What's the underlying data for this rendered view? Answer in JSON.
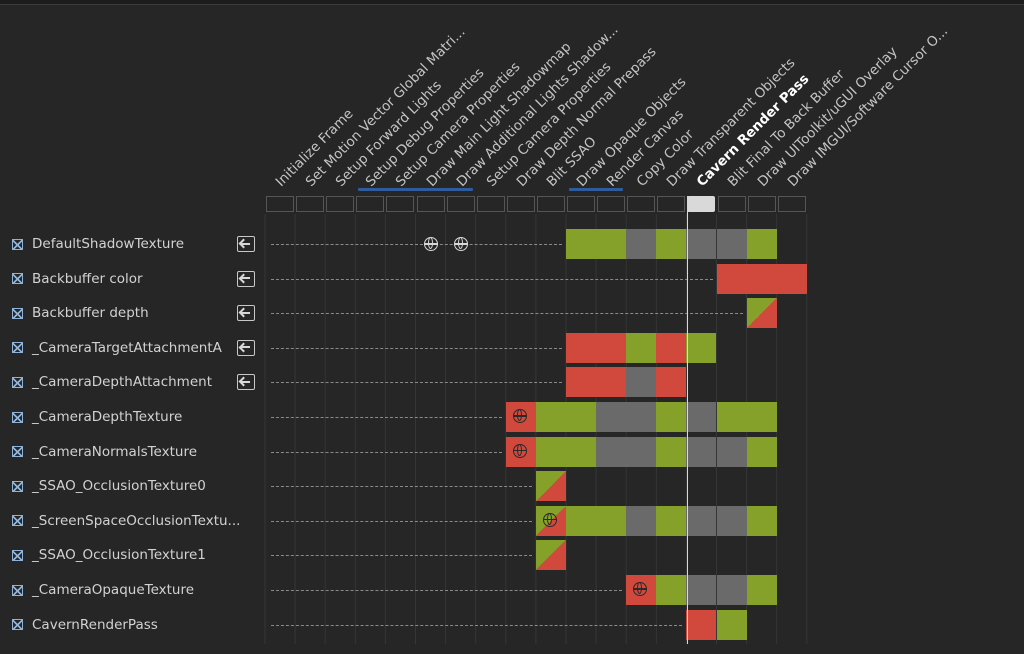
{
  "passes": [
    {
      "label": "Initialize Frame",
      "active": false
    },
    {
      "label": "Set Motion Vector Global Matri...",
      "active": false
    },
    {
      "label": "Setup Forward Lights",
      "active": false
    },
    {
      "label": "Setup Debug Properties",
      "active": false
    },
    {
      "label": "Setup Camera Properties",
      "active": false
    },
    {
      "label": "Draw Main Light Shadowmap",
      "active": false
    },
    {
      "label": "Draw Additional Lights Shadow...",
      "active": false
    },
    {
      "label": "Setup Camera Properties",
      "active": false
    },
    {
      "label": "Draw Depth Normal Prepass",
      "active": false
    },
    {
      "label": "Blit SSAO",
      "active": false
    },
    {
      "label": "Draw Opaque Objects",
      "active": false
    },
    {
      "label": "Render Canvas",
      "active": false
    },
    {
      "label": "Copy Color",
      "active": false
    },
    {
      "label": "Draw Transparent Objects",
      "active": false
    },
    {
      "label": "Cavern Render Pass",
      "active": true
    },
    {
      "label": "Blit Final To Back Buffer",
      "active": false
    },
    {
      "label": "Draw UIToolkit/uGUI Overlay",
      "active": false
    },
    {
      "label": "Draw IMGUI/Software Cursor O...",
      "active": false
    }
  ],
  "pass_groups": [
    {
      "first_pass": 3,
      "last_pass": 6
    },
    {
      "first_pass": 10,
      "last_pass": 11
    }
  ],
  "selected_pass": 14,
  "resources": [
    {
      "name": "DefaultShadowTexture",
      "imported": true,
      "cells": [
        [
          10,
          "g"
        ],
        [
          11,
          "g"
        ],
        [
          12,
          "x"
        ],
        [
          13,
          "g"
        ],
        [
          14,
          "x"
        ],
        [
          15,
          "x"
        ],
        [
          16,
          "g"
        ]
      ],
      "markers": [
        5,
        6
      ],
      "line_from": 0
    },
    {
      "name": "Backbuffer color",
      "imported": true,
      "cells": [
        [
          15,
          "r"
        ],
        [
          16,
          "r"
        ],
        [
          17,
          "r"
        ]
      ],
      "markers": [],
      "line_from": 0
    },
    {
      "name": "Backbuffer depth",
      "imported": true,
      "cells": [
        [
          16,
          "rg"
        ]
      ],
      "markers": [],
      "line_from": 0
    },
    {
      "name": "_CameraTargetAttachmentA",
      "imported": true,
      "cells": [
        [
          10,
          "r"
        ],
        [
          11,
          "r"
        ],
        [
          12,
          "g"
        ],
        [
          13,
          "r"
        ],
        [
          14,
          "g"
        ]
      ],
      "markers": [],
      "line_from": 0
    },
    {
      "name": "_CameraDepthAttachment",
      "imported": true,
      "cells": [
        [
          10,
          "r"
        ],
        [
          11,
          "r"
        ],
        [
          12,
          "x"
        ],
        [
          13,
          "r"
        ]
      ],
      "markers": [],
      "line_from": 0
    },
    {
      "name": "_CameraDepthTexture",
      "imported": false,
      "cells": [
        [
          8,
          "r",
          1
        ],
        [
          9,
          "g"
        ],
        [
          10,
          "g"
        ],
        [
          11,
          "x"
        ],
        [
          12,
          "x"
        ],
        [
          13,
          "g"
        ],
        [
          14,
          "x"
        ],
        [
          15,
          "g"
        ],
        [
          16,
          "g"
        ]
      ],
      "markers": [],
      "line_from": 0
    },
    {
      "name": "_CameraNormalsTexture",
      "imported": false,
      "cells": [
        [
          8,
          "r",
          1
        ],
        [
          9,
          "g"
        ],
        [
          10,
          "g"
        ],
        [
          11,
          "x"
        ],
        [
          12,
          "x"
        ],
        [
          13,
          "g"
        ],
        [
          14,
          "x"
        ],
        [
          15,
          "x"
        ],
        [
          16,
          "g"
        ]
      ],
      "markers": [],
      "line_from": 0
    },
    {
      "name": "_SSAO_OcclusionTexture0",
      "imported": false,
      "cells": [
        [
          9,
          "rg"
        ]
      ],
      "markers": [],
      "line_from": 0
    },
    {
      "name": "_ScreenSpaceOcclusionTextu...",
      "imported": false,
      "cells": [
        [
          9,
          "rg",
          1
        ],
        [
          10,
          "g"
        ],
        [
          11,
          "g"
        ],
        [
          12,
          "x"
        ],
        [
          13,
          "g"
        ],
        [
          14,
          "x"
        ],
        [
          15,
          "x"
        ],
        [
          16,
          "g"
        ]
      ],
      "markers": [],
      "line_from": 0
    },
    {
      "name": "_SSAO_OcclusionTexture1",
      "imported": false,
      "cells": [
        [
          9,
          "rg"
        ]
      ],
      "markers": [],
      "line_from": 0
    },
    {
      "name": "_CameraOpaqueTexture",
      "imported": false,
      "cells": [
        [
          12,
          "r",
          1
        ],
        [
          13,
          "g"
        ],
        [
          14,
          "x"
        ],
        [
          15,
          "x"
        ],
        [
          16,
          "g"
        ]
      ],
      "markers": [],
      "line_from": 0
    },
    {
      "name": "CavernRenderPass",
      "imported": false,
      "cells": [
        [
          14,
          "r"
        ],
        [
          15,
          "g"
        ]
      ],
      "markers": [],
      "line_from": 0
    }
  ]
}
